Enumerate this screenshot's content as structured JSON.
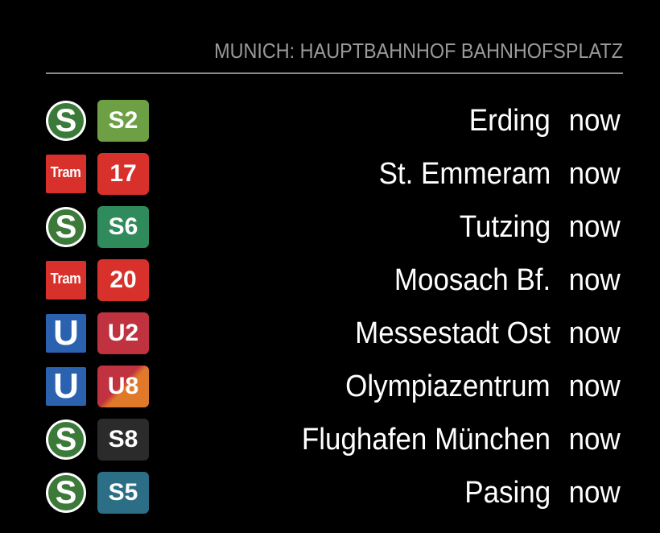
{
  "header": {
    "station": "MUNICH: HAUPTBAHNHOF BAHNHOFSPLATZ"
  },
  "departures": [
    {
      "mode": "sbahn",
      "mode_label": "S",
      "mode_icon": "s-bahn-icon",
      "line": "S2",
      "line_color": "#6da044",
      "destination": "Erding",
      "time": "now"
    },
    {
      "mode": "tram",
      "mode_label": "Tram",
      "mode_icon": "tram-icon",
      "line": "17",
      "line_color": "#d8302a",
      "destination": "St. Emmeram",
      "time": "now"
    },
    {
      "mode": "sbahn",
      "mode_label": "S",
      "mode_icon": "s-bahn-icon",
      "line": "S6",
      "line_color": "#2f8a5c",
      "destination": "Tutzing",
      "time": "now"
    },
    {
      "mode": "tram",
      "mode_label": "Tram",
      "mode_icon": "tram-icon",
      "line": "20",
      "line_color": "#d8302a",
      "destination": "Moosach Bf.",
      "time": "now"
    },
    {
      "mode": "ubahn",
      "mode_label": "U",
      "mode_icon": "u-bahn-icon",
      "line": "U2",
      "line_color": "#c0323f",
      "destination": "Messestadt Ost",
      "time": "now"
    },
    {
      "mode": "ubahn",
      "mode_label": "U",
      "mode_icon": "u-bahn-icon",
      "line": "U8",
      "line_color": "#c0323f",
      "line_color_2": "#e07a2a",
      "destination": "Olympiazentrum",
      "time": "now"
    },
    {
      "mode": "sbahn",
      "mode_label": "S",
      "mode_icon": "s-bahn-icon",
      "line": "S8",
      "line_color": "#2b2b2b",
      "destination": "Flughafen München",
      "time": "now"
    },
    {
      "mode": "sbahn",
      "mode_label": "S",
      "mode_icon": "s-bahn-icon",
      "line": "S5",
      "line_color": "#2c6e86",
      "destination": "Pasing",
      "time": "now"
    }
  ]
}
